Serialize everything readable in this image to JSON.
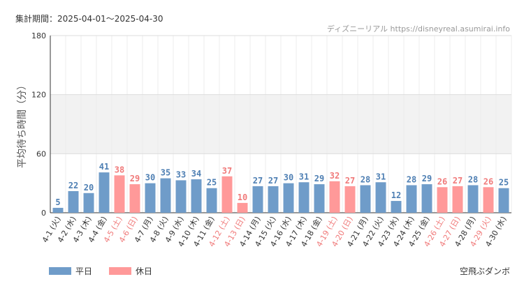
{
  "header": {
    "period": "集計期間：2025-04-01～2025-04-30",
    "source": "ディズニーリアル https://disneyreal.asumirai.info"
  },
  "footer": {
    "attraction": "空飛ぶダンボ"
  },
  "colors": {
    "weekday": "#6f9cc9",
    "holiday": "#ff9999",
    "weekday_label": "#4e7fb3",
    "holiday_label": "#f07a7a",
    "band": "#f2f2f2"
  },
  "chart_data": {
    "type": "bar",
    "ylabel": "平均待ち時間（分）",
    "ylim": [
      0,
      180
    ],
    "yticks": [
      0,
      60,
      120,
      180
    ],
    "shaded_band": [
      60,
      120
    ],
    "legend": [
      {
        "name": "平日",
        "key": "weekday"
      },
      {
        "name": "休日",
        "key": "holiday"
      }
    ],
    "categories": [
      "4-1 (火)",
      "4-2 (水)",
      "4-3 (木)",
      "4-4 (金)",
      "4-5 (土)",
      "4-6 (日)",
      "4-7 (月)",
      "4-8 (火)",
      "4-9 (水)",
      "4-10 (木)",
      "4-11 (金)",
      "4-12 (土)",
      "4-13 (日)",
      "4-14 (月)",
      "4-15 (火)",
      "4-16 (水)",
      "4-17 (木)",
      "4-18 (金)",
      "4-19 (土)",
      "4-20 (日)",
      "4-21 (月)",
      "4-22 (火)",
      "4-23 (水)",
      "4-24 (木)",
      "4-25 (金)",
      "4-26 (土)",
      "4-27 (日)",
      "4-28 (月)",
      "4-29 (火)",
      "4-30 (水)"
    ],
    "values": [
      5,
      22,
      20,
      41,
      38,
      29,
      30,
      35,
      33,
      34,
      25,
      37,
      10,
      27,
      27,
      30,
      31,
      29,
      32,
      27,
      28,
      31,
      12,
      28,
      29,
      26,
      27,
      28,
      26,
      25
    ],
    "holiday": [
      false,
      false,
      false,
      false,
      true,
      true,
      false,
      false,
      false,
      false,
      false,
      true,
      true,
      false,
      false,
      false,
      false,
      false,
      true,
      true,
      false,
      false,
      false,
      false,
      false,
      true,
      true,
      false,
      true,
      false
    ]
  }
}
